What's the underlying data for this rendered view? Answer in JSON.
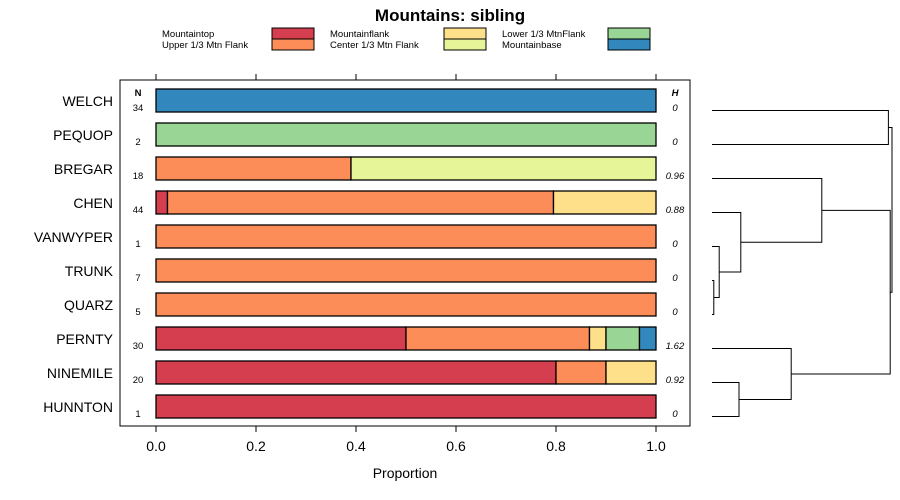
{
  "chart_data": {
    "type": "bar",
    "orientation": "horizontal",
    "stacked": true,
    "title": "Mountains: sibling",
    "xlabel": "Proportion",
    "ylabel": "",
    "xlim": [
      0,
      1
    ],
    "x_ticks": [
      "0.0",
      "0.2",
      "0.4",
      "0.6",
      "0.8",
      "1.0"
    ],
    "x_tick_values": [
      0,
      0.2,
      0.4,
      0.6,
      0.8,
      1.0
    ],
    "n_header": "N",
    "h_header": "H",
    "legend": [
      {
        "name": "Mountaintop",
        "color": "#D53E4F"
      },
      {
        "name": "Upper 1/3 Mtn Flank",
        "color": "#FC8D59"
      },
      {
        "name": "Mountainflank",
        "color": "#FEE08B"
      },
      {
        "name": "Center 1/3 Mtn Flank",
        "color": "#E6F598"
      },
      {
        "name": "Lower 1/3 MtnFlank",
        "color": "#99D594"
      },
      {
        "name": "Mountainbase",
        "color": "#3288BD"
      }
    ],
    "rows": [
      {
        "label": "WELCH",
        "n": "34",
        "h": "0",
        "segments": [
          0,
          0,
          0,
          0,
          0,
          1.0
        ]
      },
      {
        "label": "PEQUOP",
        "n": "2",
        "h": "0",
        "segments": [
          0,
          0,
          0,
          0,
          1.0,
          0
        ]
      },
      {
        "label": "BREGAR",
        "n": "18",
        "h": "0.96",
        "segments": [
          0,
          0.39,
          0,
          0.61,
          0,
          0
        ]
      },
      {
        "label": "CHEN",
        "n": "44",
        "h": "0.88",
        "segments": [
          0.023,
          0.772,
          0.205,
          0,
          0,
          0
        ]
      },
      {
        "label": "VANWYPER",
        "n": "1",
        "h": "0",
        "segments": [
          0,
          1.0,
          0,
          0,
          0,
          0
        ]
      },
      {
        "label": "TRUNK",
        "n": "7",
        "h": "0",
        "segments": [
          0,
          1.0,
          0,
          0,
          0,
          0
        ]
      },
      {
        "label": "QUARZ",
        "n": "5",
        "h": "0",
        "segments": [
          0,
          1.0,
          0,
          0,
          0,
          0
        ]
      },
      {
        "label": "PERNTY",
        "n": "30",
        "h": "1.62",
        "segments": [
          0.5,
          0.367,
          0.033,
          0,
          0.067,
          0.033
        ]
      },
      {
        "label": "NINEMILE",
        "n": "20",
        "h": "0.92",
        "segments": [
          0.8,
          0.1,
          0.1,
          0,
          0,
          0
        ]
      },
      {
        "label": "HUNNTON",
        "n": "1",
        "h": "0",
        "segments": [
          1.0,
          0,
          0,
          0,
          0,
          0
        ]
      }
    ],
    "dendrogram": {
      "leaves": [
        "WELCH",
        "PEQUOP",
        "BREGAR",
        "CHEN",
        "VANWYPER",
        "TRUNK",
        "QUARZ",
        "PERNTY",
        "NINEMILE",
        "HUNNTON"
      ],
      "merges": [
        {
          "left": 5,
          "right": 6,
          "height": 0.01
        },
        {
          "left": 4,
          "right": 10,
          "height": 0.04
        },
        {
          "left": 3,
          "right": 11,
          "height": 0.16
        },
        {
          "left": 2,
          "right": 12,
          "height": 0.61
        },
        {
          "left": 8,
          "right": 9,
          "height": 0.15
        },
        {
          "left": 7,
          "right": 14,
          "height": 0.44
        },
        {
          "left": 0,
          "right": 1,
          "height": 0.98
        },
        {
          "left": 13,
          "right": 15,
          "height": 0.99
        },
        {
          "left": 16,
          "right": 17,
          "height": 1.0
        }
      ]
    }
  }
}
